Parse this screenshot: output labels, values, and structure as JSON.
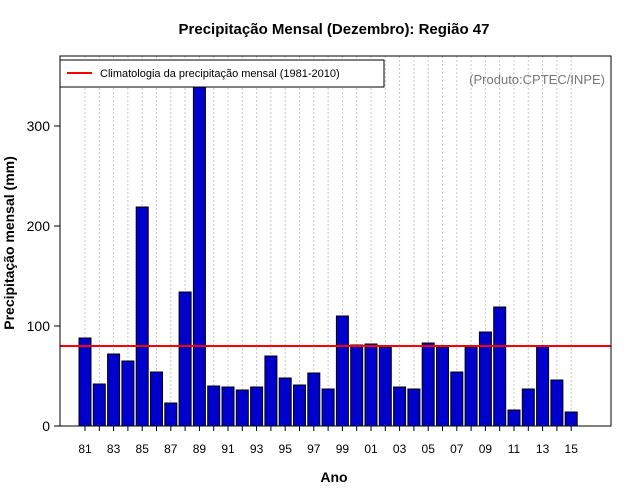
{
  "chart_data": {
    "type": "bar",
    "title": "Precipitação Mensal (Dezembro): Região 47",
    "xlabel": "Ano",
    "ylabel": "Precipitação mensal (mm)",
    "credit": "(Produto:CPTEC/INPE)",
    "legend": {
      "label": "Climatologia da precipitação mensal (1981-2010)",
      "placement": "top-left"
    },
    "categories": [
      "81",
      "82",
      "83",
      "84",
      "85",
      "86",
      "87",
      "88",
      "89",
      "90",
      "91",
      "92",
      "93",
      "94",
      "95",
      "96",
      "97",
      "98",
      "99",
      "00",
      "01",
      "02",
      "03",
      "04",
      "05",
      "06",
      "07",
      "08",
      "09",
      "10",
      "11",
      "12",
      "13",
      "14",
      "15"
    ],
    "xtick_labels": [
      "81",
      "83",
      "85",
      "87",
      "89",
      "91",
      "93",
      "95",
      "97",
      "99",
      "01",
      "03",
      "05",
      "07",
      "09",
      "11",
      "13",
      "15"
    ],
    "values": [
      88,
      42,
      72,
      65,
      219,
      54,
      23,
      134,
      347,
      40,
      39,
      36,
      39,
      70,
      48,
      41,
      53,
      37,
      110,
      81,
      82,
      79,
      39,
      37,
      83,
      79,
      54,
      79,
      94,
      119,
      16,
      37,
      80,
      46,
      14
    ],
    "climatology": 80,
    "ylim": [
      0,
      370
    ],
    "yticks": [
      0,
      100,
      200,
      300
    ],
    "grid": "vertical-dotted",
    "colors": {
      "bar": "#0000cc",
      "climatology": "#ff0000",
      "grid": "#c8c8c8"
    }
  }
}
